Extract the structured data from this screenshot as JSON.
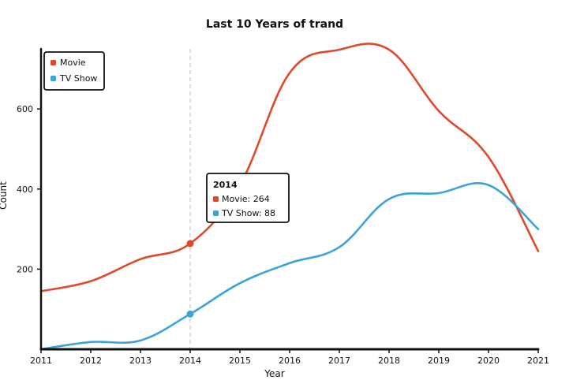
{
  "chart_data": {
    "type": "line",
    "title": "Last 10 Years of trand",
    "xlabel": "Year",
    "ylabel": "Count",
    "x": [
      2011,
      2012,
      2013,
      2014,
      2015,
      2016,
      2017,
      2018,
      2019,
      2020,
      2021
    ],
    "xlim": [
      2011,
      2021
    ],
    "ylim": [
      0,
      750
    ],
    "y_ticks": [
      200,
      400,
      600
    ],
    "grid": false,
    "legend_position": "top-left",
    "series": [
      {
        "name": "Movie",
        "color": "#e0482a",
        "values": [
          145,
          170,
          225,
          264,
          410,
          690,
          748,
          748,
          595,
          480,
          245
        ]
      },
      {
        "name": "TV Show",
        "color": "#3aa3dc",
        "values": [
          0,
          18,
          22,
          88,
          165,
          215,
          255,
          375,
          390,
          410,
          300
        ]
      }
    ],
    "tooltip": {
      "title": "2014",
      "items": [
        "Movie: 264",
        "TV Show: 88"
      ]
    },
    "hover_x": 2014
  }
}
